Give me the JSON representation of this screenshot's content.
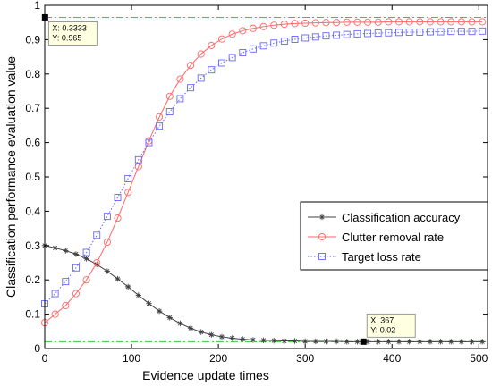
{
  "chart_data": {
    "type": "line",
    "title": "",
    "xlabel": "Evidence update times",
    "ylabel": "Classification performance evaluation value",
    "xlim": [
      0,
      510
    ],
    "ylim": [
      0,
      1
    ],
    "xticks": [
      "0",
      "100",
      "200",
      "300",
      "400",
      "500"
    ],
    "yticks": [
      "0",
      "0.1",
      "0.2",
      "0.3",
      "0.4",
      "0.5",
      "0.6",
      "0.7",
      "0.8",
      "0.9",
      "1"
    ],
    "grid": false,
    "legend_position": "center-right",
    "x": [
      0,
      12,
      24,
      36,
      48,
      60,
      72,
      84,
      96,
      108,
      120,
      132,
      144,
      156,
      168,
      180,
      192,
      204,
      216,
      228,
      240,
      252,
      264,
      276,
      288,
      300,
      312,
      324,
      336,
      348,
      360,
      372,
      384,
      396,
      408,
      420,
      432,
      444,
      456,
      468,
      480,
      492,
      504
    ],
    "series": [
      {
        "name": "Classification accuracy",
        "color": "#404040",
        "marker": "asterisk",
        "line_style": "solid",
        "values": [
          0.3,
          0.293,
          0.285,
          0.275,
          0.262,
          0.245,
          0.225,
          0.203,
          0.18,
          0.155,
          0.131,
          0.109,
          0.09,
          0.073,
          0.059,
          0.048,
          0.04,
          0.034,
          0.03,
          0.027,
          0.025,
          0.024,
          0.023,
          0.022,
          0.022,
          0.021,
          0.021,
          0.021,
          0.021,
          0.02,
          0.02,
          0.02,
          0.02,
          0.02,
          0.02,
          0.02,
          0.02,
          0.02,
          0.02,
          0.02,
          0.02,
          0.02,
          0.02
        ]
      },
      {
        "name": "Clutter removal rate",
        "color": "#ff6666",
        "marker": "circle",
        "line_style": "solid",
        "values": [
          0.075,
          0.1,
          0.125,
          0.16,
          0.2,
          0.25,
          0.31,
          0.38,
          0.455,
          0.53,
          0.605,
          0.675,
          0.735,
          0.785,
          0.825,
          0.858,
          0.883,
          0.902,
          0.916,
          0.926,
          0.933,
          0.938,
          0.942,
          0.945,
          0.947,
          0.948,
          0.949,
          0.95,
          0.95,
          0.951,
          0.951,
          0.951,
          0.951,
          0.952,
          0.952,
          0.952,
          0.952,
          0.952,
          0.952,
          0.952,
          0.952,
          0.952,
          0.952
        ]
      },
      {
        "name": "Target loss rate",
        "color": "#6666ff",
        "marker": "square",
        "line_style": "dotted",
        "values": [
          0.13,
          0.16,
          0.195,
          0.235,
          0.28,
          0.33,
          0.385,
          0.44,
          0.495,
          0.55,
          0.6,
          0.648,
          0.69,
          0.728,
          0.76,
          0.788,
          0.812,
          0.832,
          0.848,
          0.862,
          0.873,
          0.882,
          0.89,
          0.896,
          0.901,
          0.905,
          0.908,
          0.911,
          0.913,
          0.915,
          0.917,
          0.918,
          0.919,
          0.92,
          0.921,
          0.922,
          0.922,
          0.923,
          0.923,
          0.924,
          0.924,
          0.924,
          0.925
        ]
      }
    ],
    "reference_lines": [
      {
        "axis": "y",
        "value": 0.965,
        "color": "#33cc33",
        "style": "dash-dot"
      },
      {
        "axis": "y",
        "value": 0.02,
        "color": "#33cc33",
        "style": "dash-dot"
      }
    ],
    "datatips": [
      {
        "x": 0.3333,
        "y": 0.965,
        "label_x": "X: 0.3333",
        "label_y": "Y: 0.965",
        "box_side": "below-right"
      },
      {
        "x": 367,
        "y": 0.02,
        "label_x": "X: 367",
        "label_y": "Y: 0.02",
        "box_side": "above-right"
      }
    ]
  }
}
